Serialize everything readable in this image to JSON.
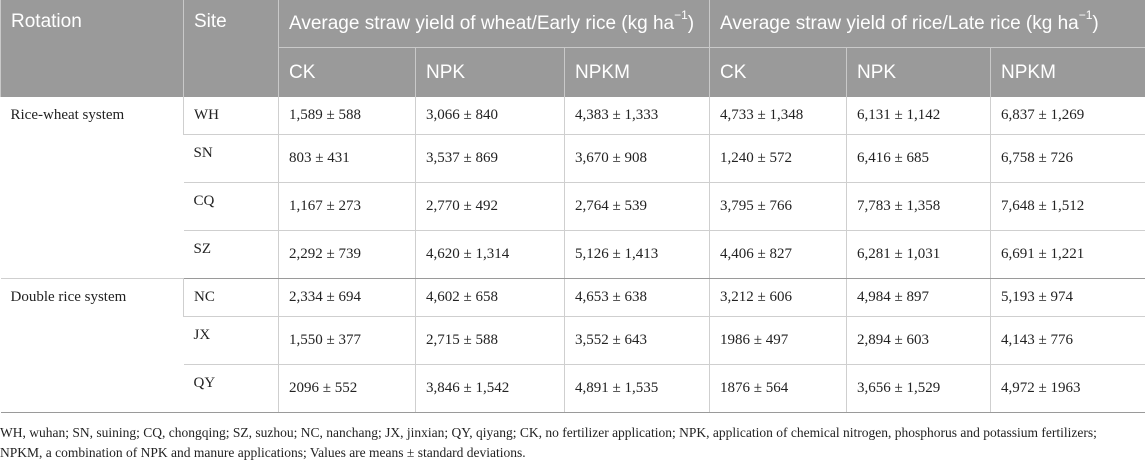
{
  "header": {
    "rotation": "Rotation",
    "site": "Site",
    "group1_prefix": "Average straw yield of wheat/Early rice (kg ha",
    "group1_sup": "−1",
    "group1_suffix": ")",
    "group2_prefix": "Average straw yield of rice/Late rice (kg ha",
    "group2_sup": "−1",
    "group2_suffix": ")",
    "sub": [
      "CK",
      "NPK",
      "NPKM",
      "CK",
      "NPK",
      "NPKM"
    ]
  },
  "groups": [
    {
      "rotation": "Rice-wheat system",
      "rows": [
        {
          "site": "WH",
          "c1": "1,589 ± 588",
          "c2": "3,066 ± 840",
          "c3": "4,383 ± 1,333",
          "c4": "4,733 ± 1,348",
          "c5": "6,131 ± 1,142",
          "c6": "6,837 ± 1,269"
        },
        {
          "site": "SN",
          "c1": "803 ± 431",
          "c2": "3,537 ± 869",
          "c3": "3,670 ± 908",
          "c4": "1,240 ± 572",
          "c5": "6,416 ± 685",
          "c6": "6,758 ± 726"
        },
        {
          "site": "CQ",
          "c1": "1,167 ± 273",
          "c2": "2,770 ± 492",
          "c3": "2,764 ± 539",
          "c4": "3,795 ± 766",
          "c5": "7,783 ± 1,358",
          "c6": "7,648 ± 1,512"
        },
        {
          "site": "SZ",
          "c1": "2,292 ± 739",
          "c2": "4,620 ± 1,314",
          "c3": "5,126 ± 1,413",
          "c4": "4,406 ± 827",
          "c5": "6,281 ± 1,031",
          "c6": "6,691 ± 1,221"
        }
      ]
    },
    {
      "rotation": "Double rice system",
      "rows": [
        {
          "site": "NC",
          "c1": "2,334 ± 694",
          "c2": "4,602 ± 658",
          "c3": "4,653 ± 638",
          "c4": "3,212 ± 606",
          "c5": "4,984 ± 897",
          "c6": "5,193 ± 974"
        },
        {
          "site": "JX",
          "c1": "1,550 ± 377",
          "c2": "2,715 ± 588",
          "c3": "3,552 ± 643",
          "c4": "1986 ± 497",
          "c5": "2,894 ± 603",
          "c6": "4,143 ± 776"
        },
        {
          "site": "QY",
          "c1": "2096 ± 552",
          "c2": "3,846 ± 1,542",
          "c3": "4,891 ± 1,535",
          "c4": "1876 ± 564",
          "c5": "3,656 ± 1,529",
          "c6": "4,972 ± 1963"
        }
      ]
    }
  ],
  "footnote": "WH, wuhan; SN, suining; CQ, chongqing; SZ, suzhou; NC, nanchang; JX, jinxian; QY, qiyang; CK, no fertilizer application; NPK, application of chemical nitrogen, phosphorus and potassium fertilizers; NPKM, a combination of NPK and manure applications; Values are means ± standard deviations."
}
